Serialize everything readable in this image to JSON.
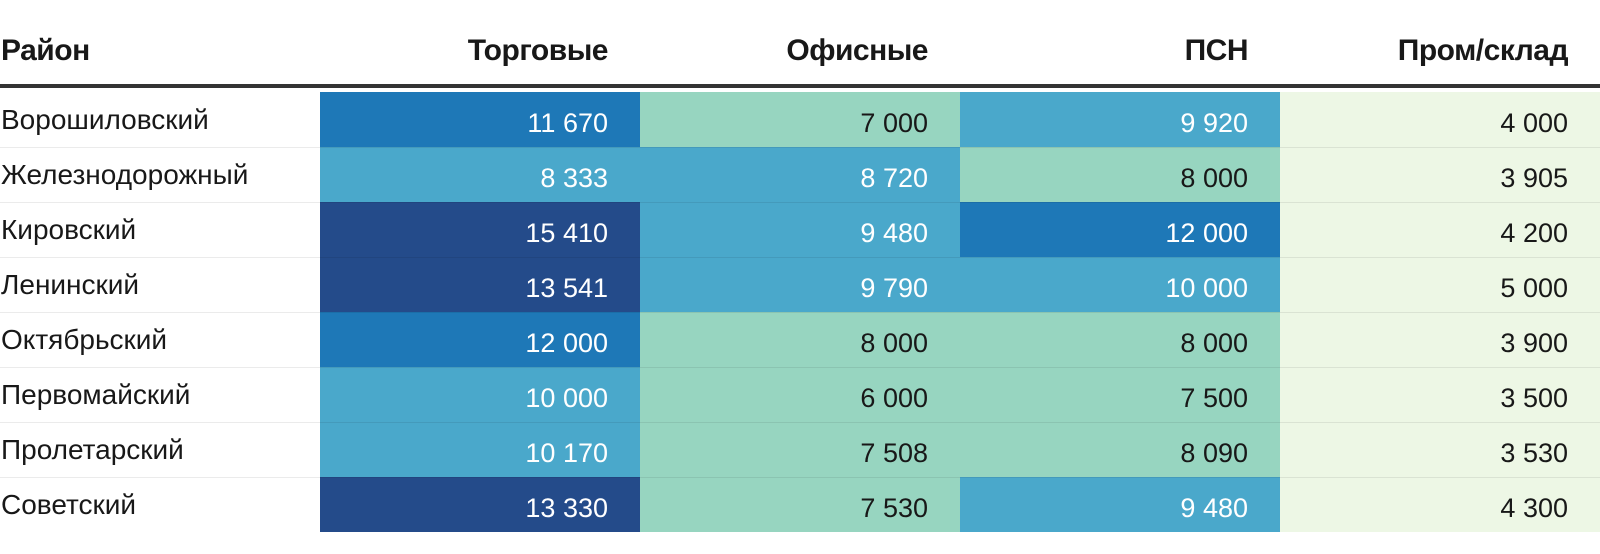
{
  "chart_data": {
    "type": "table",
    "columns": [
      "Район",
      "Торговые",
      "Офисные",
      "ПСН",
      "Пром/склад"
    ],
    "rows": [
      {
        "district": "Ворошиловский",
        "values": [
          "11 670",
          "7 000",
          "9 920",
          "4 000"
        ],
        "levels": [
          2,
          0,
          1,
          -1
        ]
      },
      {
        "district": "Железнодорожный",
        "values": [
          "8 333",
          "8 720",
          "8 000",
          "3 905"
        ],
        "levels": [
          1,
          1,
          0,
          -1
        ]
      },
      {
        "district": "Кировский",
        "values": [
          "15 410",
          "9 480",
          "12 000",
          "4 200"
        ],
        "levels": [
          3,
          1,
          2,
          -1
        ]
      },
      {
        "district": "Ленинский",
        "values": [
          "13 541",
          "9 790",
          "10 000",
          "5 000"
        ],
        "levels": [
          3,
          1,
          1,
          -1
        ]
      },
      {
        "district": "Октябрьский",
        "values": [
          "12 000",
          "8 000",
          "8 000",
          "3 900"
        ],
        "levels": [
          2,
          0,
          0,
          -1
        ]
      },
      {
        "district": "Первомайский",
        "values": [
          "10 000",
          "6 000",
          "7 500",
          "3 500"
        ],
        "levels": [
          1,
          0,
          0,
          -1
        ]
      },
      {
        "district": "Пролетарский",
        "values": [
          "10 170",
          "7 508",
          "8 090",
          "3 530"
        ],
        "levels": [
          1,
          0,
          0,
          -1
        ]
      },
      {
        "district": "Советский",
        "values": [
          "13 330",
          "7 530",
          "9 480",
          "4 300"
        ],
        "levels": [
          3,
          0,
          1,
          -1
        ]
      }
    ]
  },
  "colors": {
    "light_green": "#edf7e5",
    "level_0": "#97d5c0",
    "level_1": "#4aa8cb",
    "level_2": "#1e78b7",
    "level_3": "#244b8a",
    "text_dark": "#181818",
    "text_light": "#ffffff"
  }
}
